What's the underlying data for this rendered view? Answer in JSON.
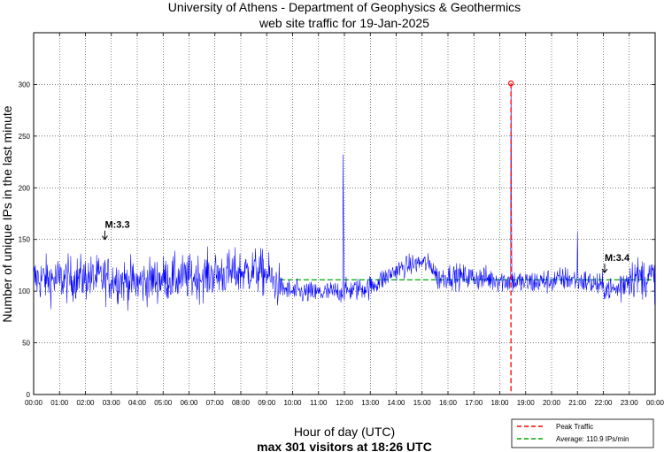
{
  "chart_data": {
    "type": "line",
    "title": "University of Athens - Department of Geophysics & Geothermics",
    "subtitle": "web site traffic for 19-Jan-2025",
    "xlabel": "Hour of day (UTC)",
    "ylabel": "Number of unique IPs in the last minute",
    "summary": "max 301 visitors at 18:26 UTC",
    "xlim": [
      0,
      24
    ],
    "ylim": [
      0,
      350
    ],
    "yticks": [
      0,
      50,
      100,
      150,
      200,
      250,
      300
    ],
    "xtick_labels": [
      "00:00",
      "01:00",
      "02:00",
      "03:00",
      "04:00",
      "05:00",
      "06:00",
      "07:00",
      "08:00",
      "09:00",
      "10:00",
      "11:00",
      "12:00",
      "13:00",
      "14:00",
      "15:00",
      "16:00",
      "17:00",
      "18:00",
      "19:00",
      "20:00",
      "21:00",
      "22:00",
      "23:00",
      "00:00"
    ],
    "grid": true,
    "series": [
      {
        "name": "Traffic",
        "color": "#0000ff",
        "baseline_profile": {
          "hours": [
            0,
            1,
            2,
            3,
            4,
            5,
            6,
            7,
            8,
            8.6,
            9.0,
            9.5,
            10,
            11,
            12,
            12.5,
            13,
            13.5,
            14,
            14.5,
            15,
            15.4,
            15.6,
            16,
            17,
            18,
            19,
            20,
            20.5,
            21,
            21.5,
            22,
            22.5,
            23,
            24
          ],
          "values": [
            112,
            111,
            113,
            112,
            108,
            112,
            113,
            116,
            118,
            120,
            116,
            104,
            99,
            98,
            100,
            102,
            104,
            112,
            120,
            125,
            128,
            124,
            112,
            115,
            113,
            111,
            108,
            110,
            112,
            111,
            108,
            104,
            101,
            114,
            113
          ]
        },
        "spikes": [
          {
            "hour": 11.95,
            "value": 232
          },
          {
            "hour": 11.97,
            "value": 165
          },
          {
            "hour": 18.433,
            "value": 301
          },
          {
            "hour": 18.45,
            "value": 203
          },
          {
            "hour": 21.0,
            "value": 158
          }
        ]
      }
    ],
    "average": {
      "label": "Average: 110.9 IPs/min",
      "value": 110.9,
      "from_hour": 9.5,
      "color": "#00aa00"
    },
    "peak": {
      "label": "Peak Traffic",
      "hour": 18.433,
      "value": 301,
      "color": "#ff0000"
    },
    "annotations": [
      {
        "text": "M:3.3",
        "hour": 2.75,
        "value": 150
      },
      {
        "text": "M:3.4",
        "hour": 22.05,
        "value": 118
      }
    ],
    "legend_position": "bottom-right"
  }
}
